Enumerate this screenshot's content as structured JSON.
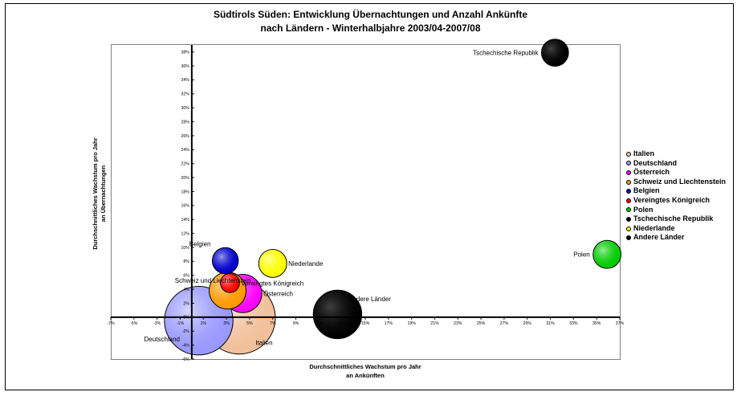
{
  "chart_data": {
    "type": "bubble",
    "title": [
      "Südtirols Süden: Entwicklung Übernachtungen und Anzahl Ankünfte",
      "nach Ländern - Winterhalbjahre 2003/04-2007/08"
    ],
    "xlabel": [
      "Durchschnittliches Wachstum pro Jahr",
      "an Ankünften"
    ],
    "ylabel": [
      "Durchschnittliches Wachstum pro Jahr",
      "an Übernachtungen"
    ],
    "xlim": [
      -0.07,
      0.37
    ],
    "ylim": [
      -0.06,
      0.39
    ],
    "x_ticks": [
      -0.07,
      -0.05,
      -0.03,
      -0.01,
      0.01,
      0.03,
      0.05,
      0.07,
      0.09,
      0.11,
      0.13,
      0.15,
      0.17,
      0.19,
      0.21,
      0.23,
      0.25,
      0.27,
      0.29,
      0.31,
      0.33,
      0.35,
      0.37
    ],
    "x_tick_labels": [
      "-7%",
      "-5%",
      "-3%",
      "-1%",
      "1%",
      "3%",
      "5%",
      "7%",
      "9%",
      "11%",
      "13%",
      "15%",
      "17%",
      "19%",
      "21%",
      "23%",
      "25%",
      "27%",
      "29%",
      "31%",
      "33%",
      "35%",
      "37%"
    ],
    "y_ticks": [
      -0.06,
      -0.04,
      -0.02,
      0.0,
      0.02,
      0.04,
      0.06,
      0.08,
      0.1,
      0.12,
      0.14,
      0.16,
      0.18,
      0.2,
      0.22,
      0.24,
      0.26,
      0.28,
      0.3,
      0.32,
      0.34,
      0.36,
      0.38
    ],
    "y_tick_labels": [
      "-6%",
      "-4%",
      "-2%",
      "0%",
      "2%",
      "4%",
      "6%",
      "8%",
      "10%",
      "12%",
      "14%",
      "16%",
      "18%",
      "20%",
      "22%",
      "24%",
      "26%",
      "28%",
      "30%",
      "32%",
      "34%",
      "36%",
      "38%"
    ],
    "series": [
      {
        "name": "Italien",
        "x": 0.041,
        "y": -0.001,
        "size": 1.0,
        "color": "#F2C09A",
        "label_pos": "bottom-right"
      },
      {
        "name": "Deutschland",
        "x": 0.006,
        "y": -0.005,
        "size": 0.9,
        "color": "#9999FF",
        "label_pos": "bottom-left"
      },
      {
        "name": "Österreich",
        "x": 0.044,
        "y": 0.034,
        "size": 0.28,
        "color": "#FF00FF",
        "label_pos": "right"
      },
      {
        "name": "Schweiz und Liechtenstein",
        "x": 0.031,
        "y": 0.038,
        "size": 0.26,
        "color": "#FF9900",
        "label_pos": "top-left"
      },
      {
        "name": "Belgien",
        "x": 0.029,
        "y": 0.081,
        "size": 0.13,
        "color": "#0000CC",
        "label_pos": "top-left"
      },
      {
        "name": "Vereingtes Königreich",
        "x": 0.033,
        "y": 0.049,
        "size": 0.07,
        "color": "#FF0000",
        "label_pos": "right"
      },
      {
        "name": "Polen",
        "x": 0.359,
        "y": 0.09,
        "size": 0.15,
        "color": "#00CC00",
        "label_pos": "left"
      },
      {
        "name": "Tschechische Republik",
        "x": 0.314,
        "y": 0.379,
        "size": 0.14,
        "color": "#000000",
        "label_pos": "left"
      },
      {
        "name": "Niederlande",
        "x": 0.07,
        "y": 0.077,
        "size": 0.15,
        "color": "#FFFF00",
        "label_pos": "right"
      },
      {
        "name": "Andere Länder",
        "x": 0.126,
        "y": 0.004,
        "size": 0.45,
        "color": "#000000",
        "label_pos": "top-right"
      }
    ],
    "legend": "right",
    "grid": false
  }
}
